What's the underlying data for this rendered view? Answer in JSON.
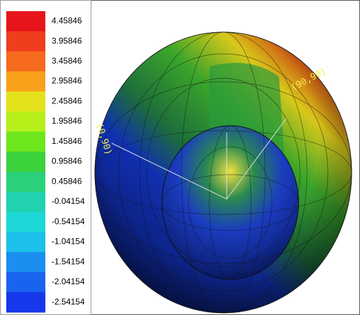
{
  "legend": [
    {
      "label": "4.45846",
      "color": "#e8141c"
    },
    {
      "label": "3.95846",
      "color": "#ef3d1e"
    },
    {
      "label": "3.45846",
      "color": "#f56a1c"
    },
    {
      "label": "2.95846",
      "color": "#f9a11a"
    },
    {
      "label": "2.45846",
      "color": "#e4e21c"
    },
    {
      "label": "1.95846",
      "color": "#b6ef1a"
    },
    {
      "label": "1.45846",
      "color": "#6ee61e"
    },
    {
      "label": "0.95846",
      "color": "#3cd23c"
    },
    {
      "label": "0.45846",
      "color": "#2bd07a"
    },
    {
      "label": "-0.04154",
      "color": "#20d2b0"
    },
    {
      "label": "-0.54154",
      "color": "#1ed8d8"
    },
    {
      "label": "-1.04154",
      "color": "#1cc0ea"
    },
    {
      "label": "-1.54154",
      "color": "#1b8ff0"
    },
    {
      "label": "-2.04154",
      "color": "#1a63ee"
    },
    {
      "label": "-2.54154",
      "color": "#1638ea"
    }
  ],
  "annotations": [
    "(0,90)",
    "(90,90)"
  ]
}
